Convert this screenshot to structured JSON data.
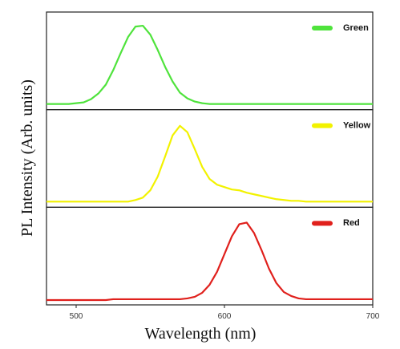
{
  "chart_data": {
    "type": "line",
    "stacked_panels": true,
    "xlabel": "Wavelength (nm)",
    "ylabel": "PL Intensity (Arb. units)",
    "xlim": [
      480,
      700
    ],
    "xticks": [
      500,
      600,
      700
    ],
    "ylim": [
      -0.05,
      1.16
    ],
    "x": [
      480,
      485,
      490,
      495,
      500,
      505,
      510,
      515,
      520,
      525,
      530,
      535,
      540,
      545,
      550,
      555,
      560,
      565,
      570,
      575,
      580,
      585,
      590,
      595,
      600,
      605,
      610,
      615,
      620,
      625,
      630,
      635,
      640,
      645,
      650,
      655,
      660,
      665,
      670,
      675,
      680,
      685,
      690,
      695,
      700
    ],
    "series": [
      {
        "name": "Green",
        "color": "#4fe33c",
        "values": [
          0.02,
          0.02,
          0.02,
          0.02,
          0.03,
          0.04,
          0.08,
          0.15,
          0.26,
          0.44,
          0.65,
          0.85,
          0.98,
          0.99,
          0.88,
          0.69,
          0.48,
          0.3,
          0.16,
          0.09,
          0.05,
          0.03,
          0.02,
          0.02,
          0.02,
          0.02,
          0.02,
          0.02,
          0.02,
          0.02,
          0.02,
          0.02,
          0.02,
          0.02,
          0.02,
          0.02,
          0.02,
          0.02,
          0.02,
          0.02,
          0.02,
          0.02,
          0.02,
          0.02,
          0.02
        ]
      },
      {
        "name": "Yellow",
        "color": "#f2f200",
        "values": [
          0.02,
          0.02,
          0.02,
          0.02,
          0.02,
          0.02,
          0.02,
          0.02,
          0.02,
          0.02,
          0.02,
          0.02,
          0.04,
          0.07,
          0.16,
          0.33,
          0.58,
          0.84,
          0.96,
          0.88,
          0.67,
          0.45,
          0.3,
          0.23,
          0.2,
          0.17,
          0.16,
          0.13,
          0.11,
          0.09,
          0.07,
          0.05,
          0.04,
          0.03,
          0.03,
          0.02,
          0.02,
          0.02,
          0.02,
          0.02,
          0.02,
          0.02,
          0.02,
          0.02,
          0.02
        ]
      },
      {
        "name": "Red",
        "color": "#e0201c",
        "values": [
          0.01,
          0.01,
          0.01,
          0.01,
          0.01,
          0.01,
          0.01,
          0.01,
          0.01,
          0.02,
          0.02,
          0.02,
          0.02,
          0.02,
          0.02,
          0.02,
          0.02,
          0.02,
          0.02,
          0.03,
          0.05,
          0.1,
          0.2,
          0.36,
          0.58,
          0.8,
          0.95,
          0.97,
          0.84,
          0.63,
          0.4,
          0.22,
          0.11,
          0.06,
          0.03,
          0.02,
          0.02,
          0.02,
          0.02,
          0.02,
          0.02,
          0.02,
          0.02,
          0.02,
          0.02
        ]
      }
    ]
  }
}
